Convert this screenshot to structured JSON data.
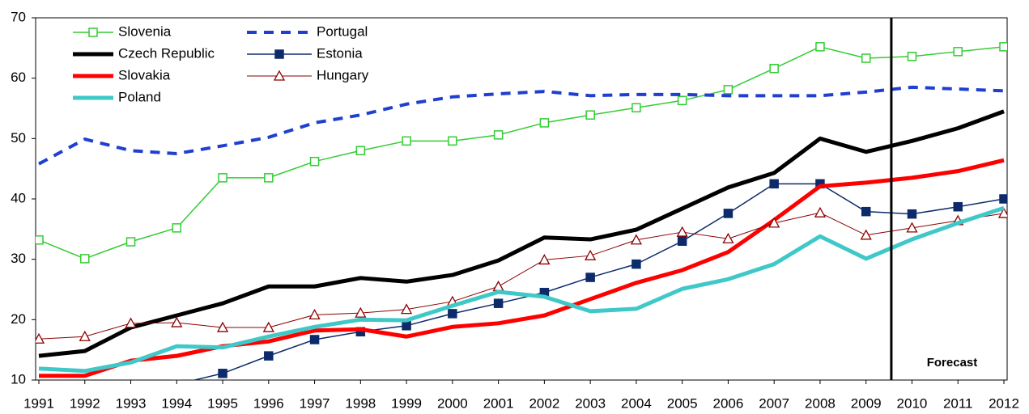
{
  "chart_data": {
    "type": "line",
    "x": [
      1991,
      1992,
      1993,
      1994,
      1995,
      1996,
      1997,
      1998,
      1999,
      2000,
      2001,
      2002,
      2003,
      2004,
      2005,
      2006,
      2007,
      2008,
      2009,
      2010,
      2011,
      2012
    ],
    "xlim": [
      1991,
      2012
    ],
    "xticks": [
      1991,
      1992,
      1993,
      1994,
      1995,
      1996,
      1997,
      1998,
      1999,
      2000,
      2001,
      2002,
      2003,
      2004,
      2005,
      2006,
      2007,
      2008,
      2009,
      2010,
      2011,
      2012
    ],
    "ylim": [
      10,
      70
    ],
    "yticks": [
      10,
      20,
      30,
      40,
      50,
      60,
      70
    ],
    "grid": false,
    "legend": "top-left",
    "annotations": [
      {
        "text": "Forecast",
        "x": 2009.55
      }
    ],
    "series": [
      {
        "name": "Slovenia",
        "color": "#33cc33",
        "width": 1.5,
        "marker": "square-open",
        "values": [
          33.2,
          30.1,
          32.9,
          35.2,
          43.5,
          43.5,
          46.2,
          48.0,
          49.6,
          49.6,
          50.6,
          52.6,
          53.9,
          55.1,
          56.3,
          58.1,
          61.6,
          65.2,
          63.3,
          63.6,
          64.4,
          65.2
        ]
      },
      {
        "name": "Portugal",
        "color": "#1f3fd0",
        "width": 4,
        "dash": true,
        "values": [
          45.8,
          49.9,
          48.0,
          47.5,
          48.8,
          50.2,
          52.6,
          53.9,
          55.7,
          56.9,
          57.4,
          57.8,
          57.1,
          57.3,
          57.3,
          57.1,
          57.1,
          57.1,
          57.7,
          58.5,
          58.2,
          57.9
        ]
      },
      {
        "name": "Czech Republic",
        "color": "#000000",
        "width": 5,
        "values": [
          14.0,
          14.8,
          18.7,
          20.7,
          22.7,
          25.5,
          25.5,
          26.9,
          26.3,
          27.4,
          29.8,
          33.6,
          33.3,
          34.9,
          38.4,
          41.9,
          44.3,
          50.0,
          47.8,
          49.6,
          51.7,
          54.5
        ]
      },
      {
        "name": "Estonia",
        "color": "#0d2b6b",
        "width": 1.5,
        "marker": "square",
        "values": [
          null,
          null,
          null,
          9.3,
          11.1,
          14.0,
          16.7,
          18.0,
          19.0,
          21.0,
          22.7,
          24.5,
          27.0,
          29.2,
          33.0,
          37.6,
          42.5,
          42.5,
          37.9,
          37.5,
          38.7,
          40.0
        ]
      },
      {
        "name": "Slovakia",
        "color": "#ff0000",
        "width": 5,
        "values": [
          10.7,
          10.7,
          13.2,
          14.0,
          15.6,
          16.4,
          18.2,
          18.4,
          17.2,
          18.8,
          19.4,
          20.7,
          23.4,
          26.1,
          28.2,
          31.2,
          36.5,
          42.1,
          42.7,
          43.5,
          44.6,
          46.4
        ]
      },
      {
        "name": "Hungary",
        "color": "#8b0000",
        "width": 1,
        "marker": "triangle-open",
        "values": [
          16.8,
          17.2,
          19.4,
          19.5,
          18.7,
          18.7,
          20.8,
          21.1,
          21.7,
          23.0,
          25.5,
          29.9,
          30.6,
          33.2,
          34.5,
          33.4,
          36.0,
          37.7,
          34.0,
          35.2,
          36.4,
          37.6
        ]
      },
      {
        "name": "Poland",
        "color": "#40c8c8",
        "width": 5,
        "values": [
          11.9,
          11.5,
          12.9,
          15.6,
          15.4,
          17.2,
          18.8,
          20.0,
          19.9,
          22.3,
          24.6,
          23.8,
          21.4,
          21.8,
          25.1,
          26.7,
          29.2,
          33.8,
          30.1,
          33.3,
          36.0,
          38.5
        ]
      }
    ]
  }
}
